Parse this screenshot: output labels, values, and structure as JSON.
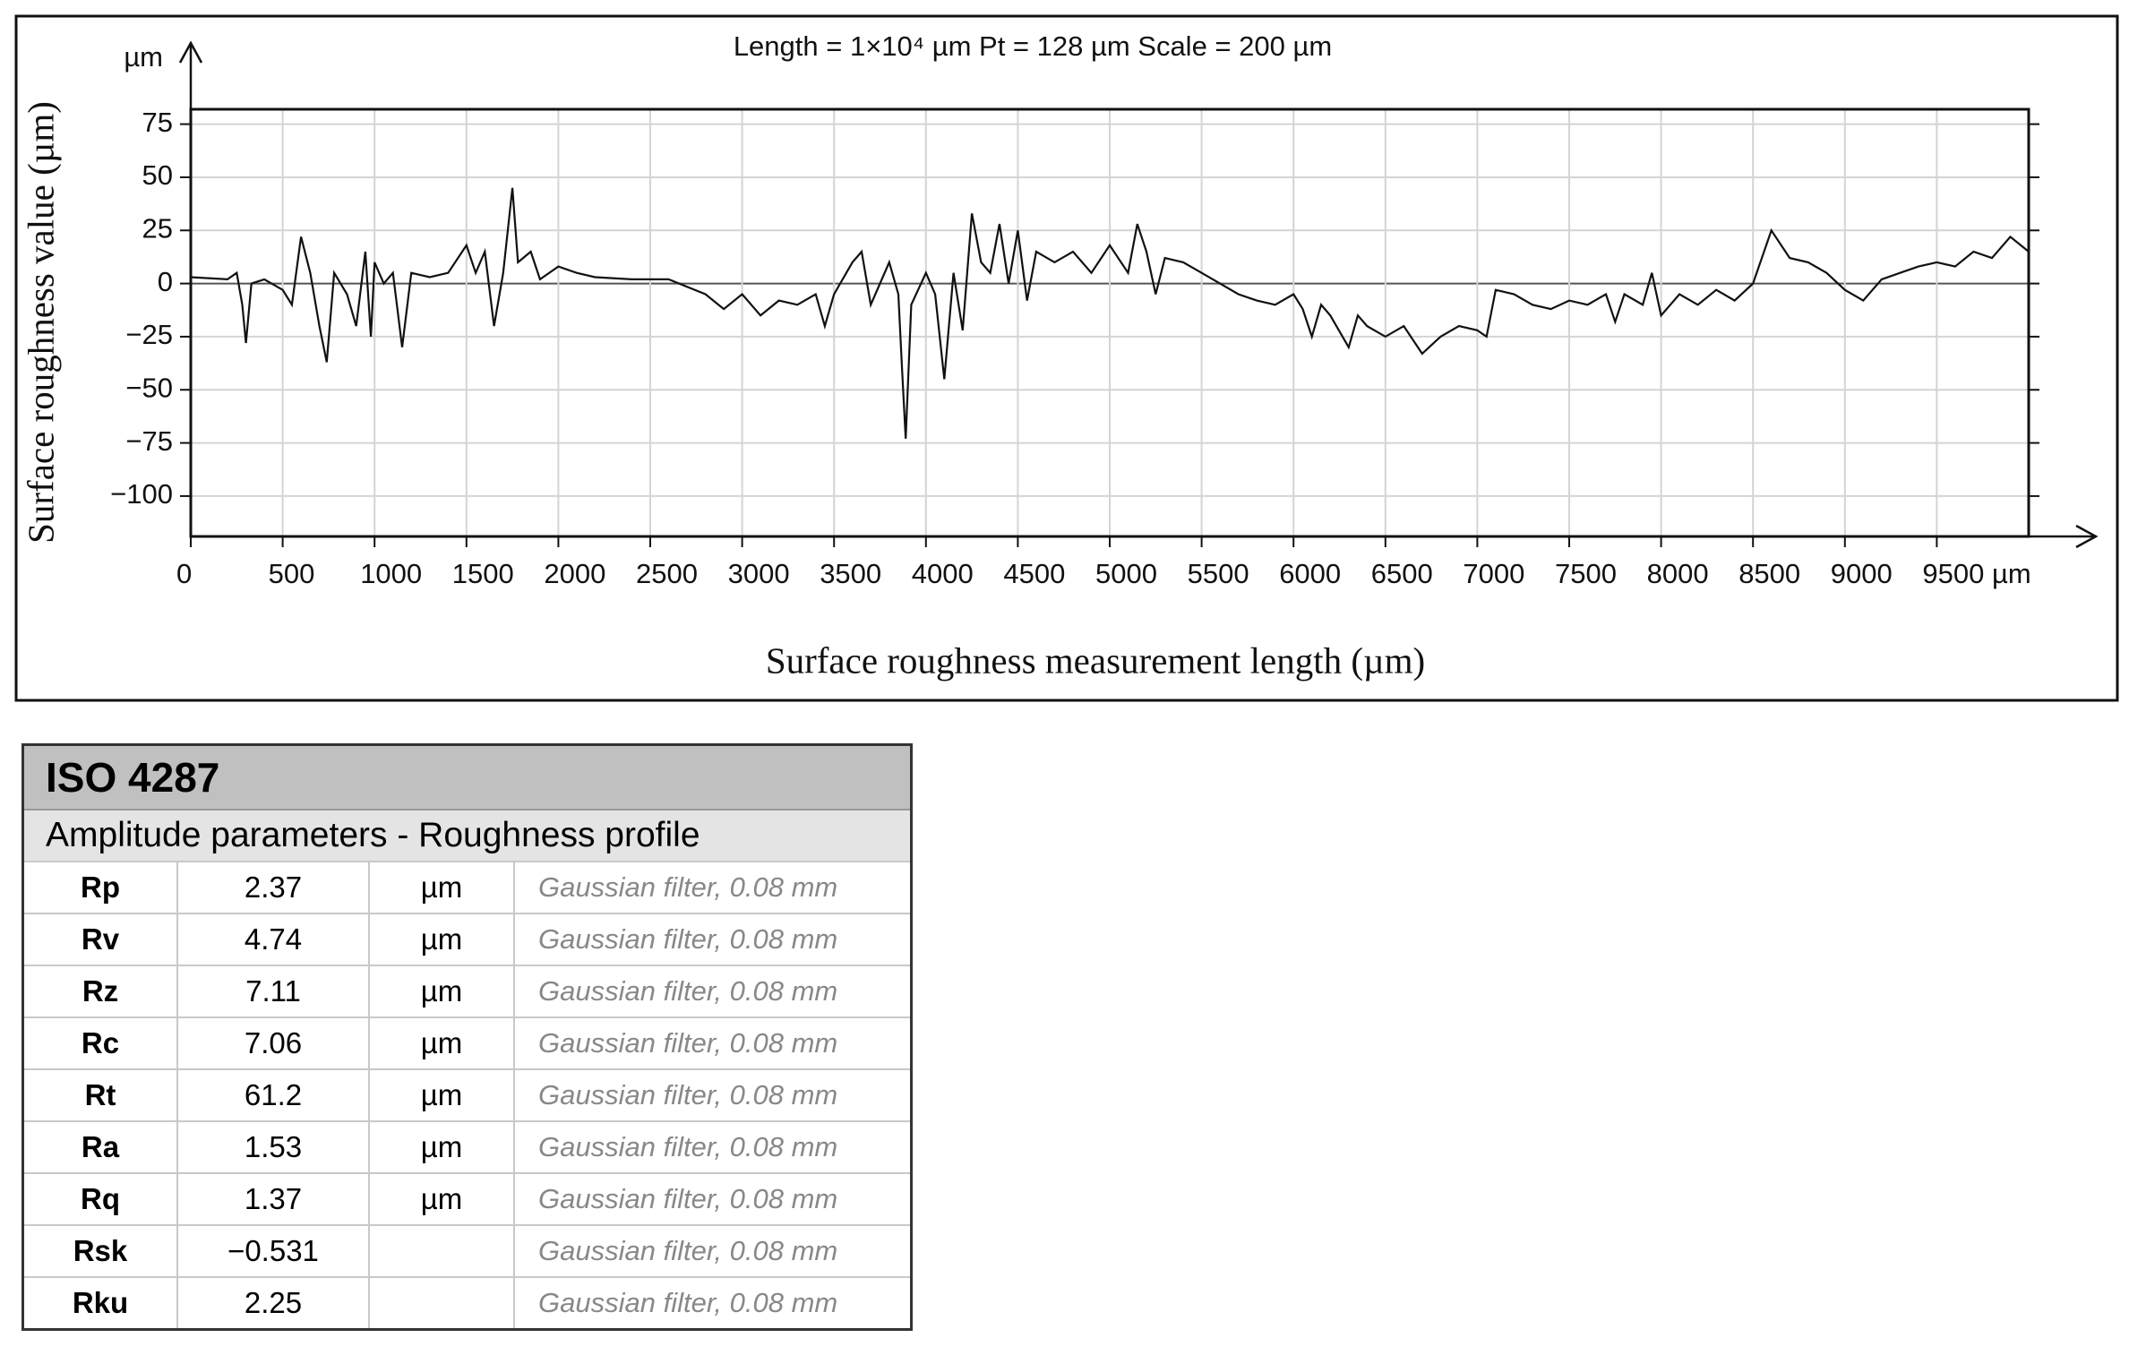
{
  "chart_data": {
    "type": "line",
    "title": "Length = 1×10⁴ µm  Pt = 128 µm  Scale = 200 µm",
    "y_unit": "µm",
    "xlabel": "Surface roughness measurement length (µm)",
    "ylabel": "Surface roughness value (µm)",
    "color": "#111111",
    "grid": true,
    "xlim": [
      0,
      10000
    ],
    "ylim": [
      -119,
      82
    ],
    "xticks": [
      0,
      500,
      1000,
      1500,
      2000,
      2500,
      3000,
      3500,
      4000,
      4500,
      5000,
      5500,
      6000,
      6500,
      7000,
      7500,
      8000,
      8500,
      9000,
      {
        "value": 9500,
        "label": "9500 µm"
      }
    ],
    "yticks": [
      75,
      50,
      25,
      0,
      {
        "value": -25,
        "label": "−25"
      },
      {
        "value": -50,
        "label": "−50"
      },
      {
        "value": -75,
        "label": "−75"
      },
      {
        "value": -100,
        "label": "−100"
      }
    ],
    "x": [
      0,
      200,
      250,
      280,
      300,
      330,
      400,
      500,
      550,
      600,
      650,
      700,
      740,
      780,
      850,
      900,
      950,
      980,
      1000,
      1050,
      1100,
      1150,
      1200,
      1300,
      1400,
      1500,
      1550,
      1600,
      1650,
      1700,
      1750,
      1780,
      1850,
      1900,
      2000,
      2100,
      2200,
      2400,
      2600,
      2800,
      2900,
      3000,
      3100,
      3200,
      3300,
      3400,
      3450,
      3500,
      3600,
      3650,
      3700,
      3800,
      3850,
      3870,
      3890,
      3920,
      4000,
      4050,
      4100,
      4150,
      4200,
      4250,
      4300,
      4350,
      4400,
      4450,
      4500,
      4550,
      4600,
      4700,
      4800,
      4900,
      5000,
      5100,
      5150,
      5200,
      5250,
      5300,
      5400,
      5500,
      5600,
      5700,
      5800,
      5900,
      6000,
      6050,
      6100,
      6150,
      6200,
      6300,
      6350,
      6400,
      6500,
      6600,
      6700,
      6800,
      6900,
      7000,
      7050,
      7100,
      7200,
      7300,
      7400,
      7500,
      7600,
      7700,
      7750,
      7800,
      7900,
      7950,
      8000,
      8100,
      8200,
      8300,
      8400,
      8500,
      8600,
      8700,
      8800,
      8900,
      9000,
      9100,
      9200,
      9300,
      9400,
      9500,
      9600,
      9700,
      9800,
      9900,
      10000
    ],
    "values": [
      3,
      2,
      5,
      -10,
      -28,
      0,
      2,
      -3,
      -10,
      22,
      5,
      -20,
      -37,
      5,
      -5,
      -20,
      15,
      -25,
      10,
      0,
      5,
      -30,
      5,
      3,
      5,
      18,
      5,
      15,
      -20,
      5,
      45,
      10,
      15,
      2,
      8,
      5,
      3,
      2,
      2,
      -5,
      -12,
      -5,
      -15,
      -8,
      -10,
      -5,
      -20,
      -5,
      10,
      15,
      -10,
      10,
      -5,
      -40,
      -73,
      -10,
      5,
      -5,
      -45,
      5,
      -22,
      33,
      10,
      5,
      28,
      0,
      25,
      -8,
      15,
      10,
      15,
      5,
      18,
      5,
      28,
      15,
      -5,
      12,
      10,
      5,
      0,
      -5,
      -8,
      -10,
      -5,
      -12,
      -25,
      -10,
      -15,
      -30,
      -15,
      -20,
      -25,
      -20,
      -33,
      -25,
      -20,
      -22,
      -25,
      -3,
      -5,
      -10,
      -12,
      -8,
      -10,
      -5,
      -18,
      -5,
      -10,
      5,
      -15,
      -5,
      -10,
      -3,
      -8,
      0,
      25,
      12,
      10,
      5,
      -3,
      -8,
      2,
      5,
      8,
      10,
      8,
      15,
      12,
      22,
      15
    ]
  },
  "table": {
    "title": "ISO 4287",
    "subtitle": "Amplitude parameters - Roughness profile",
    "rows": [
      {
        "name": "Rp",
        "value": "2.37",
        "unit": "µm",
        "note": "Gaussian filter, 0.08 mm"
      },
      {
        "name": "Rv",
        "value": "4.74",
        "unit": "µm",
        "note": "Gaussian filter, 0.08 mm"
      },
      {
        "name": "Rz",
        "value": "7.11",
        "unit": "µm",
        "note": "Gaussian filter, 0.08 mm"
      },
      {
        "name": "Rc",
        "value": "7.06",
        "unit": "µm",
        "note": "Gaussian filter, 0.08 mm"
      },
      {
        "name": "Rt",
        "value": "61.2",
        "unit": "µm",
        "note": "Gaussian filter, 0.08 mm"
      },
      {
        "name": "Ra",
        "value": "1.53",
        "unit": "µm",
        "note": "Gaussian filter, 0.08 mm"
      },
      {
        "name": "Rq",
        "value": "1.37",
        "unit": "µm",
        "note": "Gaussian filter, 0.08 mm"
      },
      {
        "name": "Rsk",
        "value": "−0.531",
        "note": "Gaussian filter, 0.08 mm"
      },
      {
        "name": "Rku",
        "value": "2.25",
        "note": "Gaussian filter, 0.08 mm"
      }
    ]
  }
}
